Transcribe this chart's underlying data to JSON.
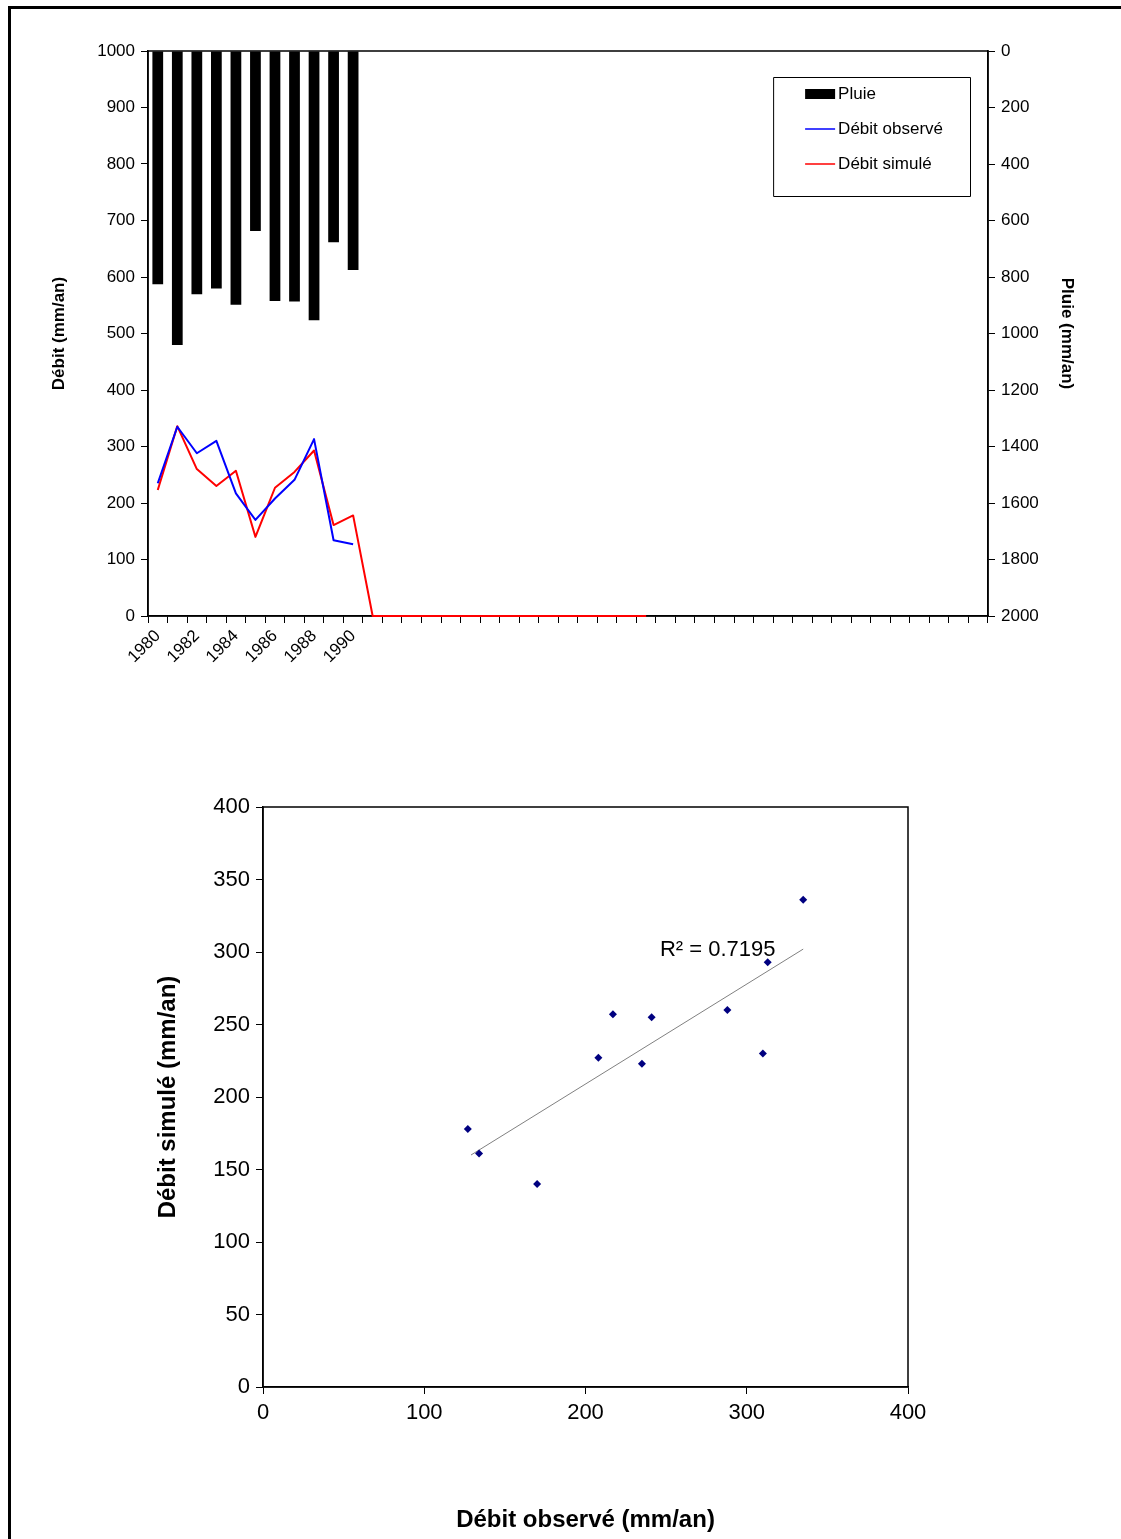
{
  "chart_data": [
    {
      "type": "line",
      "categories": [
        "1980",
        null,
        "1982",
        null,
        "1984",
        null,
        "1986",
        null,
        "1988",
        null,
        "1990",
        null,
        null,
        null,
        null,
        null,
        null,
        null,
        null,
        null,
        null,
        null,
        null,
        null,
        null,
        null,
        null,
        null,
        null,
        null,
        null,
        null,
        null,
        null,
        null,
        null,
        null,
        null,
        null,
        null,
        null,
        null,
        null
      ],
      "ylabel": "Débit (mm/an)",
      "y2label": "Pluie (mm/an)",
      "ylim": [
        0,
        1000
      ],
      "yticks": [
        0,
        100,
        200,
        300,
        400,
        500,
        600,
        700,
        800,
        900,
        1000
      ],
      "y2lim": [
        2000,
        0
      ],
      "y2ticks": [
        0,
        200,
        400,
        600,
        800,
        1000,
        1200,
        1400,
        1600,
        1800,
        2000
      ],
      "grid": false,
      "legend": "top right",
      "series": [
        {
          "name": "Pluie",
          "type": "bar",
          "axis": "y2",
          "color": "#000000",
          "values": [
            826,
            1041,
            861,
            841,
            898,
            637,
            885,
            887,
            953,
            677,
            775,
            null,
            null,
            null,
            null,
            null,
            null,
            null,
            null,
            null,
            null,
            null,
            null,
            null,
            null,
            null,
            null,
            null,
            null,
            null,
            null,
            null,
            null,
            null,
            null,
            null,
            null,
            null,
            null,
            null,
            null,
            null,
            null
          ]
        },
        {
          "name": "Débit observé",
          "type": "line",
          "axis": "y",
          "color": "#0000ff",
          "values": [
            235,
            335,
            288,
            310,
            217,
            170,
            208,
            241,
            313,
            134,
            127,
            null,
            null,
            null,
            null,
            null,
            null,
            null,
            null,
            null,
            null,
            null,
            null,
            null,
            null,
            null,
            null,
            null,
            null,
            null,
            null,
            null,
            null,
            null,
            null,
            null,
            null,
            null,
            null,
            null,
            null,
            null,
            null
          ]
        },
        {
          "name": "Débit simulé",
          "type": "line",
          "axis": "y",
          "color": "#ff0000",
          "values": [
            223,
            336,
            260,
            230,
            257,
            140,
            227,
            255,
            293,
            161,
            178,
            0,
            0,
            0,
            0,
            0,
            0,
            0,
            0,
            0,
            0,
            0,
            0,
            0,
            0,
            0,
            null,
            null,
            null,
            null,
            null,
            null,
            null,
            null,
            null,
            null,
            null,
            null,
            null,
            null,
            null,
            null,
            null
          ]
        }
      ]
    },
    {
      "type": "scatter",
      "xlabel": "Débit observé (mm/an)",
      "ylabel": "Débit simulé (mm/an)",
      "xlim": [
        0,
        400
      ],
      "xticks": [
        0,
        100,
        200,
        300,
        400
      ],
      "ylim": [
        0,
        400
      ],
      "yticks": [
        0,
        50,
        100,
        150,
        200,
        250,
        300,
        350,
        400
      ],
      "grid": false,
      "legend": false,
      "annotations": [
        "R² = 0.7195"
      ],
      "series": [
        {
          "type": "scatter",
          "marker": "diamond",
          "color": "#000080",
          "x": [
            235,
            335,
            288,
            310,
            217,
            170,
            208,
            241,
            313,
            134,
            127
          ],
          "values": [
            223,
            336,
            260,
            230,
            257,
            140,
            227,
            255,
            293,
            161,
            178
          ]
        },
        {
          "type": "line",
          "color": "#808080",
          "x": [
            129,
            335
          ],
          "values": [
            160,
            302
          ]
        }
      ]
    }
  ]
}
